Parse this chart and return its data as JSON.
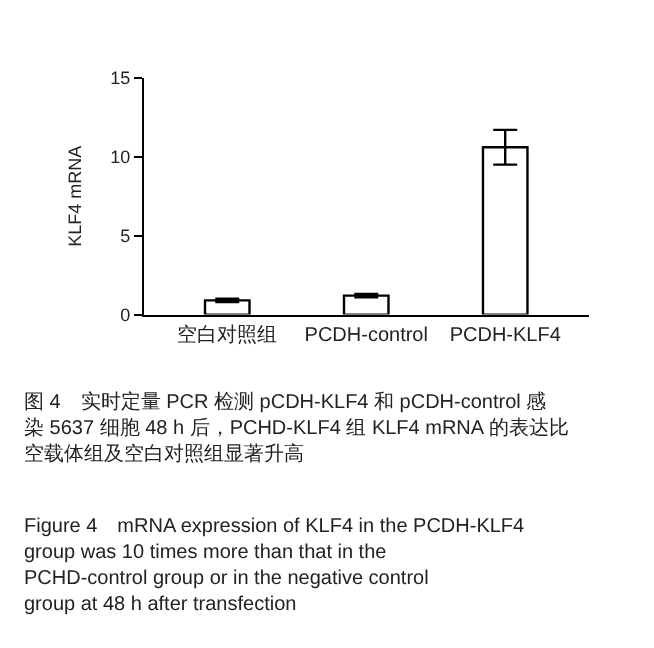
{
  "chart_data": {
    "type": "bar",
    "ylabel": "KLF4 mRNA",
    "categories": [
      "空白对照组",
      "PCDH-control",
      "PCDH-KLF4"
    ],
    "values": [
      0.9,
      1.2,
      10.6
    ],
    "errors": [
      0.1,
      0.1,
      1.1
    ],
    "color": "#ffffff",
    "ylim": [
      0,
      15
    ],
    "yticks": [
      0,
      5,
      10,
      15
    ],
    "annotations": [
      "图 4　实时定量 PCR 检测 pCDH-KLF4 和 pCDH-control 感染 5637 细胞 48 h 后，PCHD-KLF4 组 KLF4 mRNA 的表达比空载体组及空白对照组显著升高",
      "Figure 4　mRNA expression of KLF4 in the PCDH-KLF4 group was 10 times more than that in the PCHD-control group or in the negative control group at 48 h after transfection"
    ]
  }
}
